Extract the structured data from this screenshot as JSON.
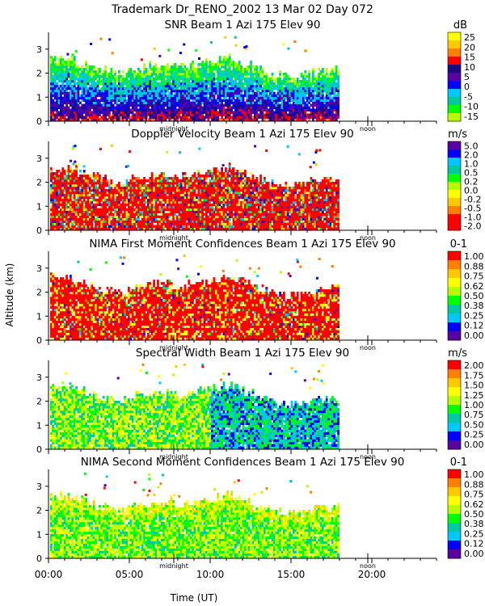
{
  "chart_data": {
    "type": "heatmap",
    "title": "Trademark Dr_RENO_2002  13 Mar 02 Day 072",
    "xlabel": "Time (UT)",
    "ylabel": "Altitude (km)",
    "xlim": [
      0,
      24
    ],
    "ylim": [
      0,
      3.7
    ],
    "x_ticks": [
      {
        "value": 0,
        "label": "00:00"
      },
      {
        "value": 5,
        "label": "05:00"
      },
      {
        "value": 10,
        "label": "10:00"
      },
      {
        "value": 15,
        "label": "15:00"
      },
      {
        "value": 20,
        "label": "20:00"
      }
    ],
    "y_ticks": [
      {
        "value": 0,
        "label": "0"
      },
      {
        "value": 1,
        "label": "1"
      },
      {
        "value": 2,
        "label": "2"
      },
      {
        "value": 3,
        "label": "3"
      }
    ],
    "markers": [
      {
        "value": 7.75,
        "label": "midnight"
      },
      {
        "value": 19.75,
        "label": "noon"
      }
    ],
    "data_extent": {
      "time_start": 0.1,
      "time_end": 17.9,
      "echo_top_km": [
        2.6,
        2.5,
        2.2,
        1.9,
        2.2,
        2.3,
        2.2,
        2.4,
        2.6,
        2.3,
        1.9,
        1.8,
        2.0,
        2.1
      ]
    },
    "panels": [
      {
        "title": "SNR Beam 1 Azi 175 Elev 90",
        "unit": "dB",
        "legend": [
          "25",
          "20",
          "15",
          "10",
          "5",
          "0",
          "-5",
          "-10",
          "-15"
        ],
        "legend_colors": [
          "#ffff00",
          "#ffc800",
          "#ff8000",
          "#ff0000",
          "#1a0a80",
          "#5a00a0",
          "#0000ff",
          "#00c8ff",
          "#00c8a0",
          "#00ff00",
          "#b4ff00"
        ]
      },
      {
        "title": "Doppler Velocity Beam 1 Azi 175 Elev 90",
        "unit": "m/s",
        "legend": [
          "5.0",
          "2.0",
          "1.0",
          "0.5",
          "0.2",
          "0.0",
          "-0.2",
          "-0.5",
          "-1.0",
          "-2.0"
        ],
        "legend_colors": [
          "#5a00a0",
          "#0000ff",
          "#00c8ff",
          "#00c8a0",
          "#00ff00",
          "#b4ff00",
          "#ffff00",
          "#ffc800",
          "#ff8000",
          "#ff0000",
          "#ff0000"
        ]
      },
      {
        "title": "NIMA First Moment Confidences Beam 1 Azi 175 Elev 90",
        "unit": "0-1",
        "legend": [
          "1.00",
          "0.88",
          "0.75",
          "0.62",
          "0.50",
          "0.38",
          "0.25",
          "0.12",
          "0.00"
        ],
        "legend_colors": [
          "#ff0000",
          "#ff8000",
          "#ffc800",
          "#ffff00",
          "#b4ff00",
          "#00ff00",
          "#00c8a0",
          "#00c8ff",
          "#0000ff",
          "#5a00a0"
        ]
      },
      {
        "title": "Spectral Width Beam 1 Azi 175 Elev 90",
        "unit": "m/s",
        "legend": [
          "2.00",
          "1.75",
          "1.50",
          "1.25",
          "1.00",
          "0.75",
          "0.50",
          "0.25",
          "0.00"
        ],
        "legend_colors": [
          "#ff0000",
          "#ff8000",
          "#ffc800",
          "#ffff00",
          "#b4ff00",
          "#00ff00",
          "#00c8a0",
          "#00c8ff",
          "#0000ff",
          "#5a00a0"
        ]
      },
      {
        "title": "NIMA Second Moment Confidences Beam 1 Azi 175 Elev 90",
        "unit": "0-1",
        "legend": [
          "1.00",
          "0.88",
          "0.75",
          "0.62",
          "0.50",
          "0.38",
          "0.25",
          "0.12",
          "0.00"
        ],
        "legend_colors": [
          "#ff0000",
          "#ff8000",
          "#ffc800",
          "#ffff00",
          "#b4ff00",
          "#00ff00",
          "#00c8a0",
          "#00c8ff",
          "#0000ff",
          "#5a00a0"
        ]
      }
    ]
  }
}
